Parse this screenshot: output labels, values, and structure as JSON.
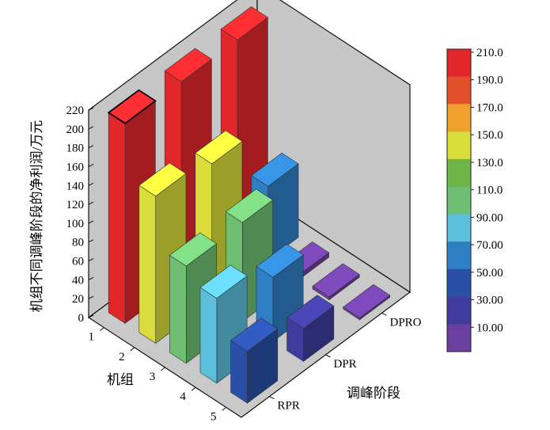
{
  "chart_data": {
    "type": "bar3d",
    "x_axis_label": "机组",
    "y_axis_label": "调峰阶段",
    "z_axis_label": "机组不同调峰阶段的净利润/万元",
    "units": [
      "1",
      "2",
      "3",
      "4",
      "5"
    ],
    "stages": [
      "RPR",
      "DPR",
      "DPRO"
    ],
    "zlim": [
      0,
      220
    ],
    "z_ticks": [
      0,
      20,
      40,
      60,
      80,
      100,
      120,
      140,
      160,
      180,
      200,
      220
    ],
    "series": [
      {
        "name": "RPR",
        "values": [
          212,
          156,
          103,
          90,
          55
        ]
      },
      {
        "name": "DPR",
        "values": [
          212,
          146,
          105,
          68,
          35
        ]
      },
      {
        "name": "DPRO",
        "values": [
          212,
          78,
          5,
          3,
          2
        ]
      }
    ],
    "colorbar": {
      "labels": [
        "210.0",
        "190.0",
        "170.0",
        "150.0",
        "130.0",
        "110.0",
        "90.00",
        "70.00",
        "50.00",
        "30.00",
        "10.00"
      ],
      "colors": [
        "#e2272b",
        "#e2502a",
        "#f0a02c",
        "#d9dc3a",
        "#6cb546",
        "#6fbf73",
        "#5bbfdb",
        "#2f7fc5",
        "#2a4fa6",
        "#3f3c9e",
        "#6b3fa0"
      ]
    }
  }
}
